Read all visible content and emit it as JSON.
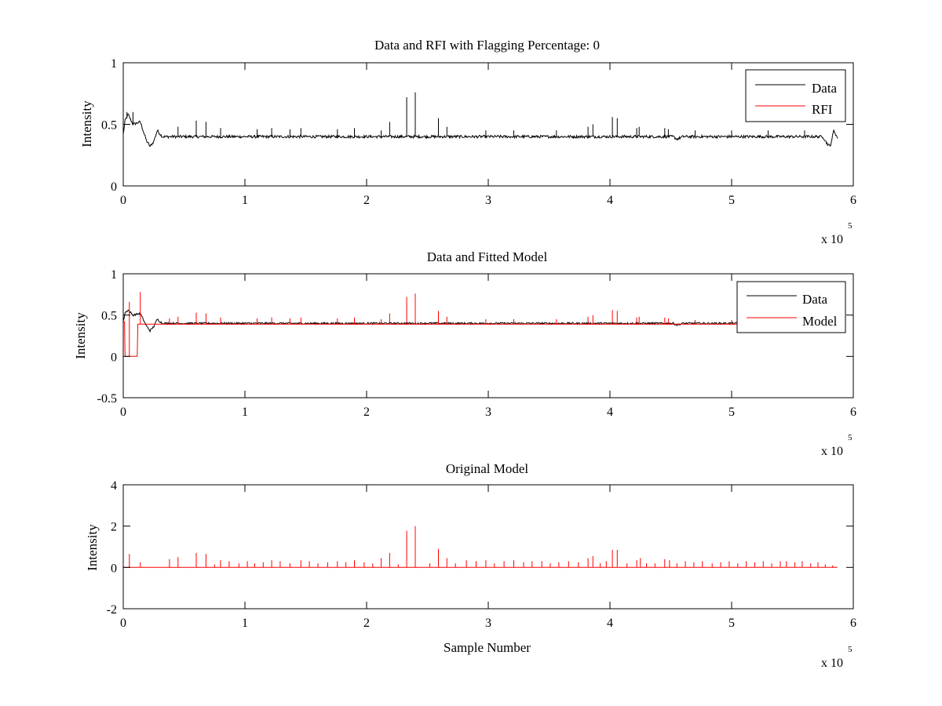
{
  "colors": {
    "data": "#000000",
    "rfi": "#ff0000",
    "model": "#ff0000",
    "axes": "#000000",
    "background": "#ffffff"
  },
  "x_exponent": {
    "base": "x 10",
    "power": "5"
  },
  "chart_data": [
    {
      "type": "line",
      "title": "Data and RFI with Flagging Percentage: 0",
      "xlabel": "",
      "ylabel": "Intensity",
      "xlim": [
        0,
        600000
      ],
      "ylim": [
        0,
        1
      ],
      "xticks": [
        0,
        100000,
        200000,
        300000,
        400000,
        500000,
        600000
      ],
      "xtick_labels": [
        "0",
        "1",
        "2",
        "3",
        "4",
        "5",
        "6"
      ],
      "yticks": [
        0,
        0.5,
        1
      ],
      "ytick_labels": [
        "0",
        "0.5",
        "1"
      ],
      "legend": {
        "position": "top-right",
        "entries": [
          "Data",
          "RFI"
        ]
      },
      "series": [
        {
          "name": "Data",
          "color": "#000000",
          "x_max": 587000,
          "baseline": 0.4,
          "features": [
            {
              "x": 0,
              "y": 0.42
            },
            {
              "x": 1500,
              "y": 0.53
            },
            {
              "x": 4000,
              "y": 0.58
            },
            {
              "x": 8000,
              "y": 0.5
            },
            {
              "x": 14000,
              "y": 0.52
            },
            {
              "x": 16000,
              "y": 0.46
            },
            {
              "x": 19000,
              "y": 0.37
            },
            {
              "x": 22000,
              "y": 0.32
            },
            {
              "x": 25000,
              "y": 0.36
            },
            {
              "x": 28000,
              "y": 0.45
            },
            {
              "x": 32000,
              "y": 0.4
            },
            {
              "x": 452000,
              "y": 0.4
            },
            {
              "x": 455000,
              "y": 0.38
            },
            {
              "x": 460000,
              "y": 0.4
            },
            {
              "x": 575000,
              "y": 0.4
            },
            {
              "x": 578000,
              "y": 0.35
            },
            {
              "x": 581000,
              "y": 0.32
            },
            {
              "x": 584000,
              "y": 0.45
            },
            {
              "x": 587000,
              "y": 0.39
            }
          ],
          "spikes": [
            [
              3000,
              0.6
            ],
            [
              8000,
              0.6
            ],
            [
              45000,
              0.48
            ],
            [
              60000,
              0.53
            ],
            [
              68000,
              0.52
            ],
            [
              80000,
              0.47
            ],
            [
              110000,
              0.46
            ],
            [
              122000,
              0.47
            ],
            [
              137000,
              0.46
            ],
            [
              146000,
              0.47
            ],
            [
              176000,
              0.46
            ],
            [
              190000,
              0.47
            ],
            [
              212000,
              0.45
            ],
            [
              219000,
              0.52
            ],
            [
              233000,
              0.72
            ],
            [
              240000,
              0.76
            ],
            [
              259000,
              0.55
            ],
            [
              266000,
              0.48
            ],
            [
              298000,
              0.45
            ],
            [
              321000,
              0.45
            ],
            [
              356000,
              0.45
            ],
            [
              382000,
              0.48
            ],
            [
              386000,
              0.5
            ],
            [
              402000,
              0.56
            ],
            [
              406000,
              0.55
            ],
            [
              422000,
              0.47
            ],
            [
              424000,
              0.48
            ],
            [
              445000,
              0.47
            ],
            [
              448000,
              0.46
            ],
            [
              470000,
              0.45
            ],
            [
              500000,
              0.45
            ],
            [
              530000,
              0.45
            ],
            [
              560000,
              0.45
            ]
          ]
        },
        {
          "name": "RFI",
          "color": "#ff0000",
          "values": []
        }
      ]
    },
    {
      "type": "line",
      "title": "Data and Fitted Model",
      "xlabel": "",
      "ylabel": "Intensity",
      "xlim": [
        0,
        600000
      ],
      "ylim": [
        -0.5,
        1
      ],
      "xticks": [
        0,
        100000,
        200000,
        300000,
        400000,
        500000,
        600000
      ],
      "xtick_labels": [
        "0",
        "1",
        "2",
        "3",
        "4",
        "5",
        "6"
      ],
      "yticks": [
        -0.5,
        0,
        0.5,
        1
      ],
      "ytick_labels": [
        "-0.5",
        "0",
        "0.5",
        "1"
      ],
      "legend": {
        "position": "top-right",
        "entries": [
          "Data",
          "Model"
        ]
      },
      "series": [
        {
          "name": "Data",
          "color": "#000000",
          "x_max": 587000,
          "baseline": 0.4,
          "features": [
            {
              "x": 0,
              "y": 0.42
            },
            {
              "x": 1500,
              "y": 0.53
            },
            {
              "x": 4000,
              "y": 0.56
            },
            {
              "x": 8000,
              "y": 0.5
            },
            {
              "x": 14000,
              "y": 0.52
            },
            {
              "x": 16000,
              "y": 0.46
            },
            {
              "x": 19000,
              "y": 0.37
            },
            {
              "x": 22000,
              "y": 0.31
            },
            {
              "x": 25000,
              "y": 0.36
            },
            {
              "x": 28000,
              "y": 0.45
            },
            {
              "x": 32000,
              "y": 0.4
            },
            {
              "x": 452000,
              "y": 0.4
            },
            {
              "x": 455000,
              "y": 0.38
            },
            {
              "x": 460000,
              "y": 0.4
            },
            {
              "x": 575000,
              "y": 0.4
            },
            {
              "x": 578000,
              "y": 0.35
            },
            {
              "x": 581000,
              "y": 0.32
            },
            {
              "x": 584000,
              "y": 0.45
            },
            {
              "x": 587000,
              "y": 0.39
            }
          ],
          "spikes": []
        },
        {
          "name": "Model",
          "color": "#ff0000",
          "x_max": 587000,
          "baseline": 0.39,
          "features": [
            {
              "x": 0,
              "y": 0.42
            },
            {
              "x": 1000,
              "y": 0.42
            },
            {
              "x": 1500,
              "y": 0
            },
            {
              "x": 11500,
              "y": 0
            },
            {
              "x": 12000,
              "y": 0.39
            },
            {
              "x": 587000,
              "y": 0.39
            }
          ],
          "spikes": [
            [
              5000,
              0.66
            ],
            [
              14000,
              0.78
            ],
            [
              38000,
              0.46
            ],
            [
              45000,
              0.48
            ],
            [
              60000,
              0.53
            ],
            [
              68000,
              0.52
            ],
            [
              80000,
              0.47
            ],
            [
              110000,
              0.46
            ],
            [
              122000,
              0.47
            ],
            [
              137000,
              0.46
            ],
            [
              146000,
              0.47
            ],
            [
              176000,
              0.46
            ],
            [
              190000,
              0.47
            ],
            [
              212000,
              0.45
            ],
            [
              219000,
              0.52
            ],
            [
              233000,
              0.72
            ],
            [
              240000,
              0.76
            ],
            [
              259000,
              0.55
            ],
            [
              266000,
              0.48
            ],
            [
              298000,
              0.45
            ],
            [
              321000,
              0.45
            ],
            [
              356000,
              0.45
            ],
            [
              382000,
              0.48
            ],
            [
              386000,
              0.5
            ],
            [
              402000,
              0.56
            ],
            [
              406000,
              0.55
            ],
            [
              422000,
              0.47
            ],
            [
              424000,
              0.48
            ],
            [
              445000,
              0.47
            ],
            [
              448000,
              0.46
            ],
            [
              470000,
              0.44
            ],
            [
              500000,
              0.44
            ],
            [
              530000,
              0.44
            ],
            [
              560000,
              0.44
            ]
          ]
        }
      ]
    },
    {
      "type": "line",
      "title": "Original Model",
      "xlabel": "Sample Number",
      "ylabel": "Intensity",
      "xlim": [
        0,
        600000
      ],
      "ylim": [
        -2,
        4
      ],
      "xticks": [
        0,
        100000,
        200000,
        300000,
        400000,
        500000,
        600000
      ],
      "xtick_labels": [
        "0",
        "1",
        "2",
        "3",
        "4",
        "5",
        "6"
      ],
      "yticks": [
        -2,
        0,
        2,
        4
      ],
      "ytick_labels": [
        "-2",
        "0",
        "2",
        "4"
      ],
      "legend": null,
      "series": [
        {
          "name": "",
          "color": "#ff0000",
          "x_max": 587000,
          "baseline": 0,
          "features": [
            {
              "x": 0,
              "y": 0
            },
            {
              "x": 587000,
              "y": 0
            }
          ],
          "spikes": [
            [
              5000,
              0.65
            ],
            [
              14000,
              0.25
            ],
            [
              38000,
              0.4
            ],
            [
              45000,
              0.5
            ],
            [
              60000,
              0.7
            ],
            [
              68000,
              0.65
            ],
            [
              75000,
              0.15
            ],
            [
              80000,
              0.35
            ],
            [
              87000,
              0.3
            ],
            [
              95000,
              0.2
            ],
            [
              102000,
              0.3
            ],
            [
              108000,
              0.2
            ],
            [
              115000,
              0.25
            ],
            [
              122000,
              0.35
            ],
            [
              129000,
              0.3
            ],
            [
              137000,
              0.2
            ],
            [
              146000,
              0.35
            ],
            [
              153000,
              0.3
            ],
            [
              160000,
              0.2
            ],
            [
              168000,
              0.25
            ],
            [
              176000,
              0.3
            ],
            [
              183000,
              0.25
            ],
            [
              190000,
              0.35
            ],
            [
              198000,
              0.25
            ],
            [
              205000,
              0.2
            ],
            [
              212000,
              0.45
            ],
            [
              219000,
              0.7
            ],
            [
              226000,
              0.15
            ],
            [
              233000,
              1.78
            ],
            [
              240000,
              2.0
            ],
            [
              252000,
              0.2
            ],
            [
              259000,
              0.9
            ],
            [
              266000,
              0.45
            ],
            [
              273000,
              0.2
            ],
            [
              282000,
              0.35
            ],
            [
              290000,
              0.3
            ],
            [
              298000,
              0.35
            ],
            [
              305000,
              0.2
            ],
            [
              313000,
              0.3
            ],
            [
              321000,
              0.35
            ],
            [
              329000,
              0.25
            ],
            [
              336000,
              0.3
            ],
            [
              344000,
              0.3
            ],
            [
              351000,
              0.2
            ],
            [
              358000,
              0.25
            ],
            [
              366000,
              0.3
            ],
            [
              374000,
              0.25
            ],
            [
              382000,
              0.45
            ],
            [
              386000,
              0.55
            ],
            [
              392000,
              0.2
            ],
            [
              397000,
              0.3
            ],
            [
              402000,
              0.85
            ],
            [
              406000,
              0.85
            ],
            [
              414000,
              0.2
            ],
            [
              422000,
              0.35
            ],
            [
              425000,
              0.45
            ],
            [
              430000,
              0.2
            ],
            [
              437000,
              0.2
            ],
            [
              445000,
              0.4
            ],
            [
              449000,
              0.35
            ],
            [
              455000,
              0.2
            ],
            [
              462000,
              0.3
            ],
            [
              469000,
              0.25
            ],
            [
              476000,
              0.3
            ],
            [
              484000,
              0.2
            ],
            [
              491000,
              0.25
            ],
            [
              498000,
              0.3
            ],
            [
              505000,
              0.2
            ],
            [
              512000,
              0.3
            ],
            [
              519000,
              0.25
            ],
            [
              526000,
              0.3
            ],
            [
              533000,
              0.2
            ],
            [
              540000,
              0.3
            ],
            [
              545000,
              0.3
            ],
            [
              552000,
              0.25
            ],
            [
              558000,
              0.3
            ],
            [
              565000,
              0.2
            ],
            [
              571000,
              0.25
            ],
            [
              577000,
              0.15
            ],
            [
              583000,
              0.1
            ]
          ]
        }
      ]
    }
  ]
}
